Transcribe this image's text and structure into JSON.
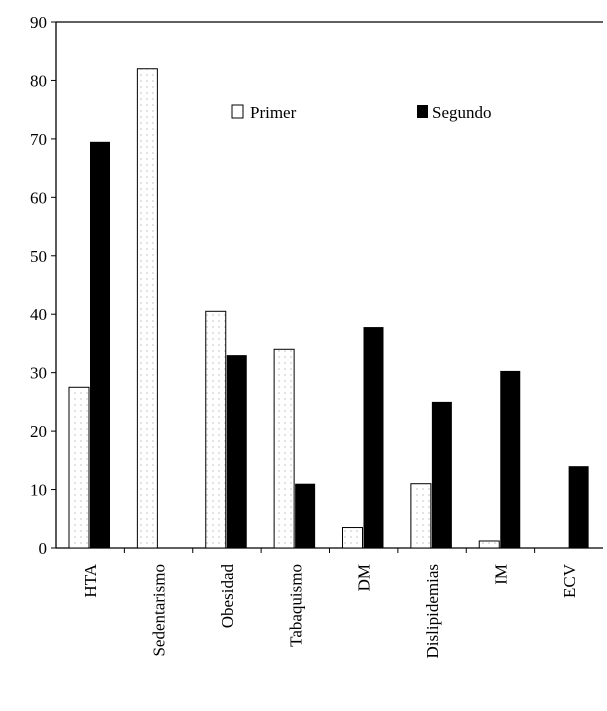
{
  "chart_data": {
    "type": "bar",
    "title": "",
    "xlabel": "",
    "ylabel": "",
    "ylim": [
      0,
      90
    ],
    "yticks": [
      0,
      10,
      20,
      30,
      40,
      50,
      60,
      70,
      80,
      90
    ],
    "grid": false,
    "legend_position": "top-right",
    "categories": [
      "HTA",
      "Sedentarismo",
      "Obesidad",
      "Tabaquismo",
      "DM",
      "Dislipidemias",
      "IM",
      "ECV"
    ],
    "series": [
      {
        "name": "Primer",
        "fill": "dotted-white",
        "values": [
          27.5,
          82,
          40.5,
          34,
          3.5,
          11,
          1.2,
          0
        ]
      },
      {
        "name": "Segundo",
        "fill": "#000000",
        "values": [
          69.5,
          0,
          33,
          11,
          37.8,
          25,
          30.3,
          14
        ]
      }
    ]
  }
}
